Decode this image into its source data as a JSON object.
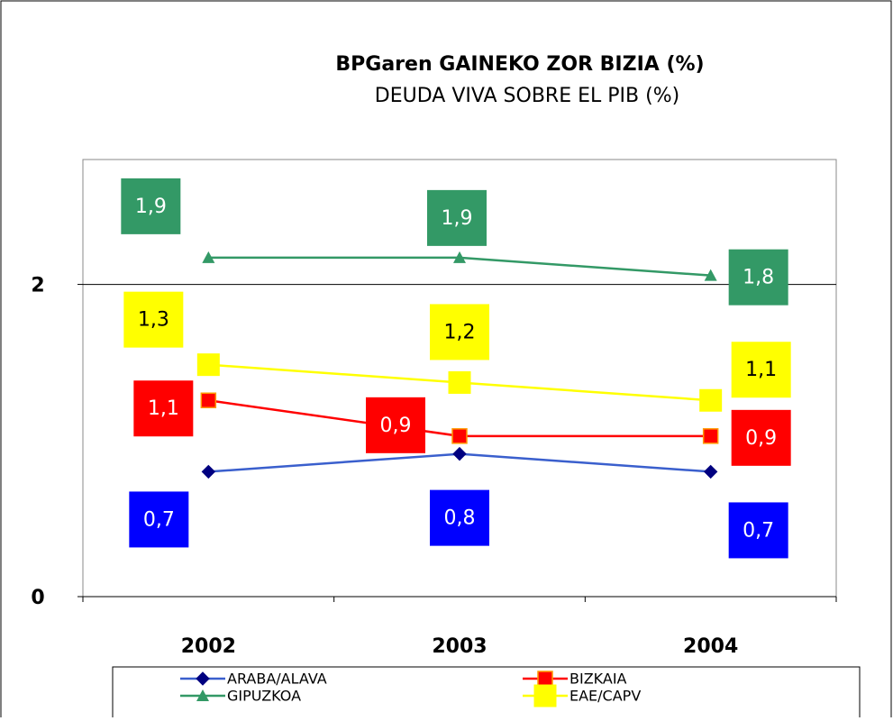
{
  "chart_data": {
    "type": "line",
    "title": "BPGaren GAINEKO ZOR BIZIA (%)",
    "subtitle": "DEUDA VIVA SOBRE EL PIB (%)",
    "categories": [
      "2002",
      "2003",
      "2004"
    ],
    "series": [
      {
        "name": "ARABA/ALAVA",
        "color": "#3a5fcd",
        "values": [
          0.7,
          0.8,
          0.7
        ],
        "value_labels": [
          "0,7",
          "0,8",
          "0,7"
        ]
      },
      {
        "name": "BIZKAIA",
        "color": "#ff0000",
        "values": [
          1.1,
          0.9,
          0.9
        ],
        "value_labels": [
          "1,1",
          "0,9",
          "0,9"
        ]
      },
      {
        "name": "GIPUZKOA",
        "color": "#339966",
        "values": [
          1.9,
          1.9,
          1.8
        ],
        "value_labels": [
          "1,9",
          "1,9",
          "1,8"
        ]
      },
      {
        "name": "EAE/CAPV",
        "color": "#ffff00",
        "values": [
          1.3,
          1.2,
          1.1
        ],
        "value_labels": [
          "1,3",
          "1,2",
          "1,1"
        ]
      }
    ],
    "ylim": [
      0,
      2.45
    ],
    "yticks": [
      0,
      {
        "value": 1.75,
        "label": "2"
      }
    ],
    "grid": true
  }
}
